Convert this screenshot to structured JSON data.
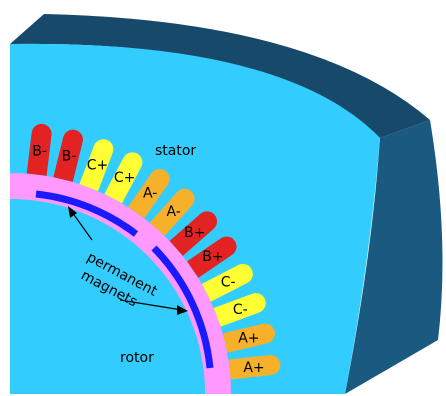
{
  "labels": {
    "stator": "stator",
    "rotor": "rotor",
    "magnets_line1": "permanent",
    "magnets_line2": "magnets"
  },
  "slots": [
    {
      "label": "B-",
      "color": "#e32222"
    },
    {
      "label": "B-",
      "color": "#e32222"
    },
    {
      "label": "C+",
      "color": "#ffff33"
    },
    {
      "label": "C+",
      "color": "#ffff33"
    },
    {
      "label": "A-",
      "color": "#f6b02a"
    },
    {
      "label": "A-",
      "color": "#f6b02a"
    },
    {
      "label": "B+",
      "color": "#e32222"
    },
    {
      "label": "B+",
      "color": "#e32222"
    },
    {
      "label": "C-",
      "color": "#ffff33"
    },
    {
      "label": "C-",
      "color": "#ffff33"
    },
    {
      "label": "A+",
      "color": "#f6b02a"
    },
    {
      "label": "A+",
      "color": "#f6b02a"
    }
  ],
  "colors": {
    "stator_face": "#33ccff",
    "stator_outer_side": "#1b5a80",
    "stator_top_side": "#17496b",
    "rotor_face": "#33ccff",
    "air_gap_band": "#ff99ff",
    "magnet": "#1a1aff"
  }
}
